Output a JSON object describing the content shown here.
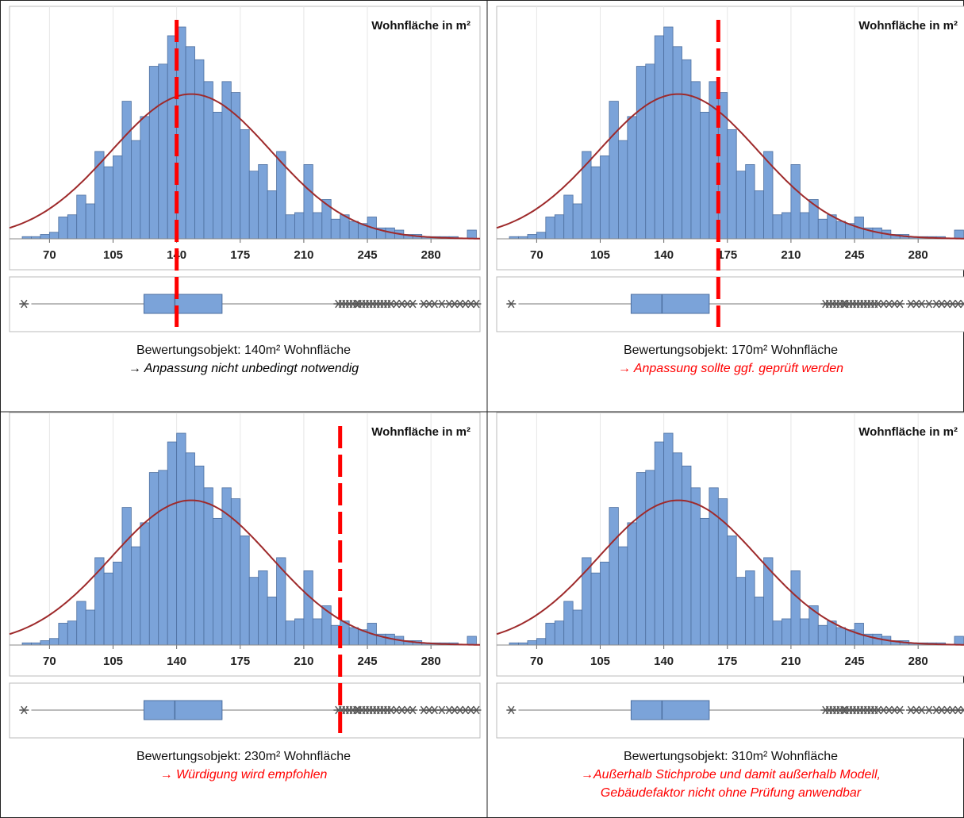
{
  "chart_data": [
    {
      "type": "histogram",
      "label": "Wohnfläche in m²",
      "bins": [
        55,
        60,
        65,
        70,
        75,
        80,
        85,
        90,
        95,
        100,
        105,
        110,
        115,
        120,
        125,
        130,
        135,
        140,
        145,
        150,
        155,
        160,
        165,
        170,
        175,
        180,
        185,
        190,
        195,
        200,
        205,
        210,
        215,
        220,
        225,
        230,
        235,
        240,
        245,
        250,
        255,
        260,
        265,
        270,
        275,
        280,
        285,
        290,
        295,
        300,
        305
      ],
      "values": [
        1,
        1,
        2,
        3,
        10,
        11,
        20,
        16,
        40,
        33,
        38,
        63,
        45,
        56,
        79,
        80,
        93,
        97,
        88,
        82,
        72,
        58,
        72,
        67,
        50,
        31,
        34,
        22,
        40,
        11,
        12,
        34,
        12,
        18,
        9,
        11,
        8,
        7,
        10,
        5,
        5,
        4,
        2,
        2,
        1,
        1,
        1,
        1,
        0,
        4
      ],
      "color": "#7ba3d9",
      "xlim": [
        48,
        307
      ],
      "xticks": [
        70,
        105,
        140,
        175,
        210,
        245,
        280
      ],
      "ylim": [
        0,
        105
      ],
      "normal_fit": {
        "mean": 148,
        "sd": 44,
        "color": "#9e2a2b"
      },
      "boxplot": {
        "whisker_low": 60,
        "q1": 122,
        "median": 139,
        "q3": 165,
        "whisker_high": 227,
        "outliers": [
          56,
          229,
          231,
          233,
          235,
          237,
          239,
          240,
          242,
          244,
          246,
          248,
          250,
          252,
          254,
          256,
          258,
          261,
          264,
          267,
          270,
          276,
          279,
          282,
          286,
          290,
          293,
          296,
          299,
          302,
          305
        ]
      },
      "reference_line": {
        "value": 140,
        "color": "#ff0000"
      },
      "caption": "Bewertungsobjekt: 140m² Wohnfläche",
      "note": [
        "→ Anpassung nicht unbedingt notwendig"
      ],
      "note_color": "#000000"
    },
    {
      "type": "histogram",
      "label": "Wohnfläche in m²",
      "bins": [
        55,
        60,
        65,
        70,
        75,
        80,
        85,
        90,
        95,
        100,
        105,
        110,
        115,
        120,
        125,
        130,
        135,
        140,
        145,
        150,
        155,
        160,
        165,
        170,
        175,
        180,
        185,
        190,
        195,
        200,
        205,
        210,
        215,
        220,
        225,
        230,
        235,
        240,
        245,
        250,
        255,
        260,
        265,
        270,
        275,
        280,
        285,
        290,
        295,
        300,
        305
      ],
      "values": [
        1,
        1,
        2,
        3,
        10,
        11,
        20,
        16,
        40,
        33,
        38,
        63,
        45,
        56,
        79,
        80,
        93,
        97,
        88,
        82,
        72,
        58,
        72,
        67,
        50,
        31,
        34,
        22,
        40,
        11,
        12,
        34,
        12,
        18,
        9,
        11,
        8,
        7,
        10,
        5,
        5,
        4,
        2,
        2,
        1,
        1,
        1,
        1,
        0,
        4
      ],
      "color": "#7ba3d9",
      "xlim": [
        48,
        307
      ],
      "xticks": [
        70,
        105,
        140,
        175,
        210,
        245,
        280
      ],
      "ylim": [
        0,
        105
      ],
      "normal_fit": {
        "mean": 148,
        "sd": 44,
        "color": "#9e2a2b"
      },
      "boxplot": {
        "whisker_low": 60,
        "q1": 122,
        "median": 139,
        "q3": 165,
        "whisker_high": 227,
        "outliers": [
          56,
          229,
          231,
          233,
          235,
          237,
          239,
          240,
          242,
          244,
          246,
          248,
          250,
          252,
          254,
          256,
          258,
          261,
          264,
          267,
          270,
          276,
          279,
          282,
          286,
          290,
          293,
          296,
          299,
          302,
          305
        ]
      },
      "reference_line": {
        "value": 170,
        "color": "#ff0000"
      },
      "caption": "Bewertungsobjekt: 170m² Wohnfläche",
      "note": [
        "→ Anpassung sollte ggf. geprüft werden"
      ],
      "note_color": "#ff0000"
    },
    {
      "type": "histogram",
      "label": "Wohnfläche in m²",
      "bins": [
        55,
        60,
        65,
        70,
        75,
        80,
        85,
        90,
        95,
        100,
        105,
        110,
        115,
        120,
        125,
        130,
        135,
        140,
        145,
        150,
        155,
        160,
        165,
        170,
        175,
        180,
        185,
        190,
        195,
        200,
        205,
        210,
        215,
        220,
        225,
        230,
        235,
        240,
        245,
        250,
        255,
        260,
        265,
        270,
        275,
        280,
        285,
        290,
        295,
        300,
        305
      ],
      "values": [
        1,
        1,
        2,
        3,
        10,
        11,
        20,
        16,
        40,
        33,
        38,
        63,
        45,
        56,
        79,
        80,
        93,
        97,
        88,
        82,
        72,
        58,
        72,
        67,
        50,
        31,
        34,
        22,
        40,
        11,
        12,
        34,
        12,
        18,
        9,
        11,
        8,
        7,
        10,
        5,
        5,
        4,
        2,
        2,
        1,
        1,
        1,
        1,
        0,
        4
      ],
      "color": "#7ba3d9",
      "xlim": [
        48,
        307
      ],
      "xticks": [
        70,
        105,
        140,
        175,
        210,
        245,
        280
      ],
      "ylim": [
        0,
        105
      ],
      "normal_fit": {
        "mean": 148,
        "sd": 44,
        "color": "#9e2a2b"
      },
      "boxplot": {
        "whisker_low": 60,
        "q1": 122,
        "median": 139,
        "q3": 165,
        "whisker_high": 227,
        "outliers": [
          56,
          229,
          231,
          233,
          235,
          237,
          239,
          240,
          242,
          244,
          246,
          248,
          250,
          252,
          254,
          256,
          258,
          261,
          264,
          267,
          270,
          276,
          279,
          282,
          286,
          290,
          293,
          296,
          299,
          302,
          305
        ]
      },
      "reference_line": {
        "value": 230,
        "color": "#ff0000"
      },
      "caption": "Bewertungsobjekt: 230m² Wohnfläche",
      "note": [
        "→ Würdigung wird empfohlen"
      ],
      "note_color": "#ff0000"
    },
    {
      "type": "histogram",
      "label": "Wohnfläche in m²",
      "bins": [
        55,
        60,
        65,
        70,
        75,
        80,
        85,
        90,
        95,
        100,
        105,
        110,
        115,
        120,
        125,
        130,
        135,
        140,
        145,
        150,
        155,
        160,
        165,
        170,
        175,
        180,
        185,
        190,
        195,
        200,
        205,
        210,
        215,
        220,
        225,
        230,
        235,
        240,
        245,
        250,
        255,
        260,
        265,
        270,
        275,
        280,
        285,
        290,
        295,
        300,
        305
      ],
      "values": [
        1,
        1,
        2,
        3,
        10,
        11,
        20,
        16,
        40,
        33,
        38,
        63,
        45,
        56,
        79,
        80,
        93,
        97,
        88,
        82,
        72,
        58,
        72,
        67,
        50,
        31,
        34,
        22,
        40,
        11,
        12,
        34,
        12,
        18,
        9,
        11,
        8,
        7,
        10,
        5,
        5,
        4,
        2,
        2,
        1,
        1,
        1,
        1,
        0,
        4
      ],
      "color": "#7ba3d9",
      "xlim": [
        48,
        307
      ],
      "xticks": [
        70,
        105,
        140,
        175,
        210,
        245,
        280
      ],
      "ylim": [
        0,
        105
      ],
      "normal_fit": {
        "mean": 148,
        "sd": 44,
        "color": "#9e2a2b"
      },
      "boxplot": {
        "whisker_low": 60,
        "q1": 122,
        "median": 139,
        "q3": 165,
        "whisker_high": 227,
        "outliers": [
          56,
          229,
          231,
          233,
          235,
          237,
          239,
          240,
          242,
          244,
          246,
          248,
          250,
          252,
          254,
          256,
          258,
          261,
          264,
          267,
          270,
          276,
          279,
          282,
          286,
          290,
          293,
          296,
          299,
          302,
          305
        ]
      },
      "reference_line": {
        "value": 310,
        "color": "#ff0000"
      },
      "caption": "Bewertungsobjekt: 310m² Wohnfläche",
      "note": [
        "→Außerhalb Stichprobe und damit außerhalb Modell,",
        "Gebäudefaktor nicht ohne Prüfung anwendbar"
      ],
      "note_color": "#ff0000"
    }
  ]
}
